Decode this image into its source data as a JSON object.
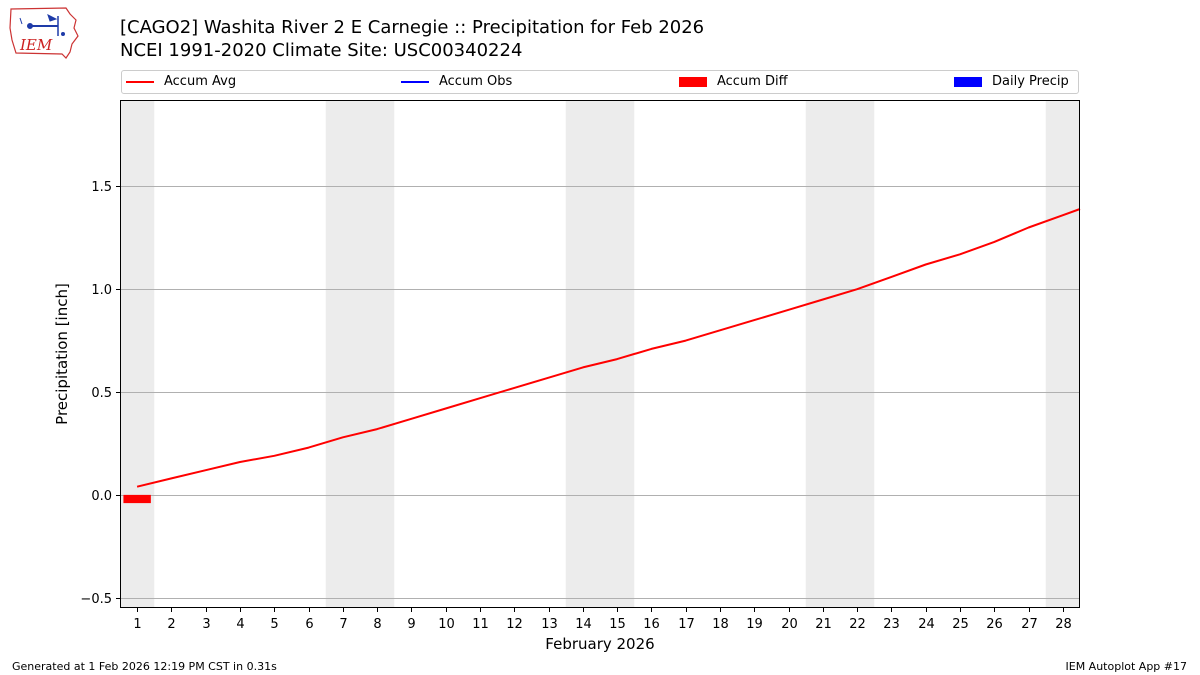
{
  "header": {
    "title_line1": "[CAGO2] Washita River 2 E Carnegie :: Precipitation for Feb 2026",
    "title_line2": "NCEI 1991-2020 Climate Site: USC00340224"
  },
  "logo": {
    "text": "IEM"
  },
  "footer": {
    "generated": "Generated at 1 Feb 2026 12:19 PM CST in 0.31s",
    "app": "IEM Autoplot App #17"
  },
  "legend": {
    "items": [
      {
        "label": "Accum Avg",
        "kind": "line",
        "color": "#ff0000"
      },
      {
        "label": "Accum Obs",
        "kind": "line",
        "color": "#0000ff"
      },
      {
        "label": "Accum Diff",
        "kind": "patch",
        "color": "#ff0000"
      },
      {
        "label": "Daily Precip",
        "kind": "patch",
        "color": "#0000ff"
      }
    ]
  },
  "chart_data": {
    "type": "line",
    "xlabel": "February 2026",
    "ylabel": "Precipitation [inch]",
    "xlim": [
      0.5,
      28.5
    ],
    "ylim": [
      -0.55,
      1.92
    ],
    "yticks": [
      -0.5,
      0.0,
      0.5,
      1.0,
      1.5
    ],
    "ytick_labels": [
      "−0.5",
      "0.0",
      "0.5",
      "1.0",
      "1.5"
    ],
    "xticks": [
      1,
      2,
      3,
      4,
      5,
      6,
      7,
      8,
      9,
      10,
      11,
      12,
      13,
      14,
      15,
      16,
      17,
      18,
      19,
      20,
      21,
      22,
      23,
      24,
      25,
      26,
      27,
      28
    ],
    "grid": "y",
    "weekend_shading": [
      [
        0.5,
        1.5
      ],
      [
        6.5,
        8.5
      ],
      [
        13.5,
        15.5
      ],
      [
        20.5,
        22.5
      ],
      [
        27.5,
        28.5
      ]
    ],
    "weekend_color": "#ececec",
    "series": [
      {
        "name": "Accum Avg",
        "kind": "line",
        "color": "#ff0000",
        "x": [
          1,
          2,
          3,
          4,
          5,
          6,
          7,
          8,
          9,
          10,
          11,
          12,
          13,
          14,
          15,
          16,
          17,
          18,
          19,
          20,
          21,
          22,
          23,
          24,
          25,
          26,
          27,
          28,
          28.5
        ],
        "values": [
          0.04,
          0.08,
          0.12,
          0.16,
          0.19,
          0.23,
          0.28,
          0.32,
          0.37,
          0.42,
          0.47,
          0.52,
          0.57,
          0.62,
          0.66,
          0.71,
          0.75,
          0.8,
          0.85,
          0.9,
          0.95,
          1.0,
          1.06,
          1.12,
          1.17,
          1.23,
          1.3,
          1.36,
          1.39
        ]
      },
      {
        "name": "Accum Diff",
        "kind": "bar",
        "color": "#ff0000",
        "x": [
          1
        ],
        "values": [
          -0.04
        ]
      }
    ]
  }
}
